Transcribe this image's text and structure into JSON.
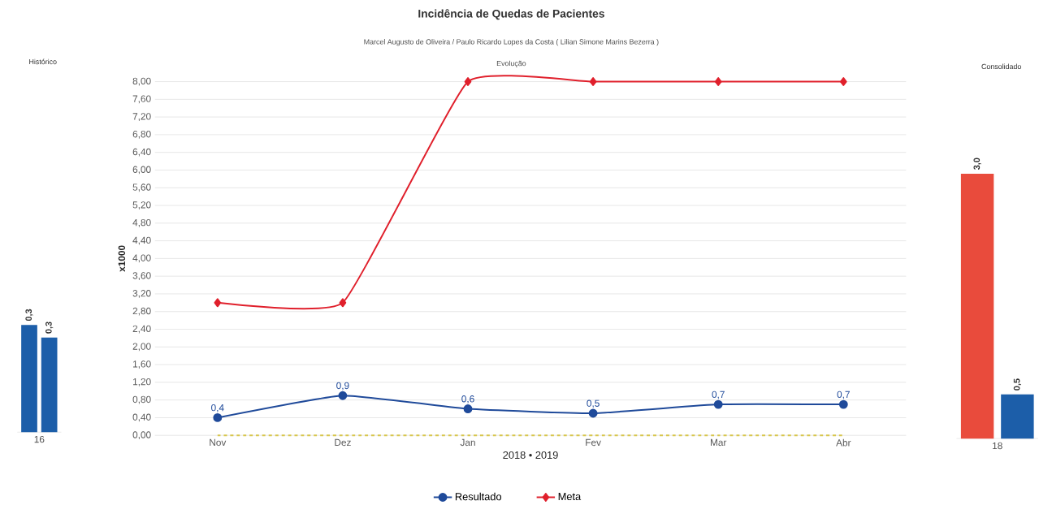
{
  "chart_data": [
    {
      "type": "bar",
      "title": "Histórico",
      "categories": [
        "16"
      ],
      "series": [
        {
          "color": "#1c5ea9",
          "values": [
            0.34
          ],
          "value_labels": [
            "0,3"
          ]
        },
        {
          "color": "#1c5ea9",
          "values": [
            0.3
          ],
          "value_labels": [
            "0,3"
          ]
        }
      ]
    },
    {
      "type": "line",
      "title": "Incidência de Quedas de Pacientes",
      "subtitle": "Marcel Augusto de Oliveira / Paulo Ricardo Lopes da Costa ( Lilian Simone Marins Bezerra )",
      "annotations": [
        "Evolução"
      ],
      "categories": [
        "Nov",
        "Dez",
        "Jan",
        "Fev",
        "Mar",
        "Abr"
      ],
      "xlabel": "2018 • 2019",
      "ylabel": "x1000",
      "ylim": [
        0,
        8
      ],
      "yticks": [
        {
          "value": 0,
          "label": "0,00"
        },
        {
          "value": 0.4,
          "label": "0,40"
        },
        {
          "value": 0.8,
          "label": "0,80"
        },
        {
          "value": 1.2,
          "label": "1,20"
        },
        {
          "value": 1.6,
          "label": "1,60"
        },
        {
          "value": 2,
          "label": "2,00"
        },
        {
          "value": 2.4,
          "label": "2,40"
        },
        {
          "value": 2.8,
          "label": "2,80"
        },
        {
          "value": 3.2,
          "label": "3,20"
        },
        {
          "value": 3.6,
          "label": "3,60"
        },
        {
          "value": 4,
          "label": "4,00"
        },
        {
          "value": 4.4,
          "label": "4,40"
        },
        {
          "value": 4.8,
          "label": "4,80"
        },
        {
          "value": 5.2,
          "label": "5,20"
        },
        {
          "value": 5.6,
          "label": "5,60"
        },
        {
          "value": 6,
          "label": "6,00"
        },
        {
          "value": 6.4,
          "label": "6,40"
        },
        {
          "value": 6.8,
          "label": "6,80"
        },
        {
          "value": 7.2,
          "label": "7,20"
        },
        {
          "value": 7.6,
          "label": "7,60"
        },
        {
          "value": 8,
          "label": "8,00"
        }
      ],
      "grid": "y",
      "legend": "bottom",
      "series": [
        {
          "name": "Resultado",
          "color": "#1f4a9a",
          "marker": "circle",
          "values": [
            0.4,
            0.9,
            0.6,
            0.5,
            0.7,
            0.7
          ],
          "value_labels": [
            "0,4",
            "0,9",
            "0,6",
            "0,5",
            "0,7",
            "0,7"
          ]
        },
        {
          "name": "Meta",
          "color": "#e0202c",
          "marker": "diamond",
          "values": [
            3,
            3,
            8,
            8,
            8,
            8
          ]
        },
        {
          "color": "#d8c64c",
          "marker": "none",
          "line_style": "dashed",
          "values": [
            0,
            0,
            0,
            0,
            0,
            0
          ]
        }
      ]
    },
    {
      "type": "bar",
      "title": "Consolidado",
      "categories": [
        "18"
      ],
      "series": [
        {
          "color": "#e94b3c",
          "values": [
            3.0
          ],
          "value_labels": [
            "3,0"
          ]
        },
        {
          "color": "#1c5ea9",
          "values": [
            0.5
          ],
          "value_labels": [
            "0,5"
          ]
        }
      ]
    }
  ]
}
